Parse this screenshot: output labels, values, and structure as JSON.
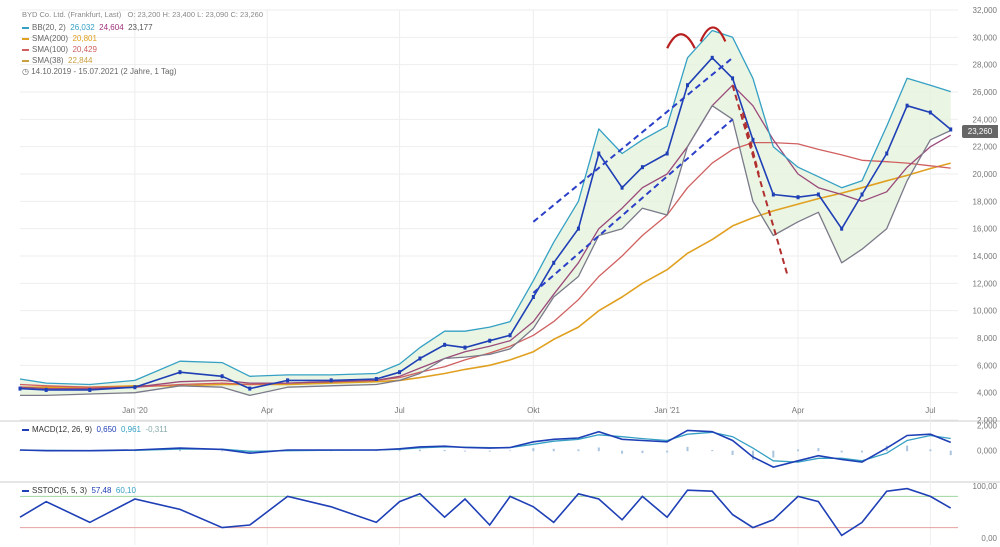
{
  "header": {
    "title": "BYD Co. Ltd. (Frankfurt, Last)",
    "ohlc": "O: 23,200  H: 23,400  L: 23,090  C: 23,260"
  },
  "legend": [
    {
      "label": "BB(20, 2)",
      "v1": "26,032",
      "v2": "24,604",
      "v3": "23,177",
      "color": "#35a0c4"
    },
    {
      "label": "SMA(200)",
      "v1": "20,801",
      "color": "#e0a020"
    },
    {
      "label": "SMA(100)",
      "v1": "20,429",
      "color": "#d06060"
    },
    {
      "label": "SMA(38)",
      "v1": "22,844",
      "color": "#c8a040"
    }
  ],
  "range": "14.10.2019 - 15.07.2021   (2 Jahre, 1 Tag)",
  "last_price": "23,260",
  "macd": {
    "label": "MACD(12, 26, 9)",
    "v1": "0,650",
    "v2": "0,961",
    "v3": "-0,311",
    "ticks": [
      "2,000",
      "0,000"
    ]
  },
  "sstoc": {
    "label": "SSTOC(5, 5, 3)",
    "v1": "57,48",
    "v2": "60,10",
    "ticks": [
      "100,00",
      "0,00"
    ]
  },
  "chart_data": {
    "type": "line",
    "title": "BYD Co. Ltd. (Frankfurt, Last)",
    "x_ticks": [
      "Jan '20",
      "Apr",
      "Jul",
      "Okt",
      "Jan '21",
      "Apr",
      "Jul"
    ],
    "y_ticks": [
      "2,000",
      "4,000",
      "6,000",
      "8,000",
      "10,000",
      "12,000",
      "14,000",
      "16,000",
      "18,000",
      "20,000",
      "22,000",
      "24,000",
      "26,000",
      "28,000",
      "30,000",
      "32,000"
    ],
    "ylim": [
      2,
      32
    ],
    "x": [
      "2019-10-14",
      "2019-11-01",
      "2019-12-01",
      "2020-01-01",
      "2020-02-01",
      "2020-03-01",
      "2020-03-20",
      "2020-04-15",
      "2020-05-15",
      "2020-06-15",
      "2020-07-01",
      "2020-07-15",
      "2020-08-01",
      "2020-08-15",
      "2020-09-01",
      "2020-09-15",
      "2020-10-01",
      "2020-10-15",
      "2020-11-01",
      "2020-11-15",
      "2020-12-01",
      "2020-12-15",
      "2021-01-01",
      "2021-01-15",
      "2021-02-01",
      "2021-02-15",
      "2021-03-01",
      "2021-03-15",
      "2021-04-01",
      "2021-04-15",
      "2021-05-01",
      "2021-05-15",
      "2021-06-01",
      "2021-06-15",
      "2021-07-01",
      "2021-07-15"
    ],
    "series": [
      {
        "name": "BYD Co. Ltd.",
        "values": [
          4.3,
          4.2,
          4.2,
          4.4,
          5.5,
          5.2,
          4.3,
          4.9,
          4.9,
          5.0,
          5.5,
          6.5,
          7.5,
          7.3,
          7.8,
          8.2,
          11.0,
          13.5,
          16.0,
          21.5,
          19.0,
          20.5,
          21.5,
          26.5,
          28.5,
          27.0,
          22.5,
          18.5,
          18.3,
          18.5,
          16.0,
          18.5,
          21.5,
          25.0,
          24.5,
          23.26
        ]
      },
      {
        "name": "BB(20, 2)",
        "values": [
          5.0,
          4.7,
          4.6,
          4.9,
          6.3,
          6.2,
          5.2,
          5.3,
          5.3,
          5.4,
          6.1,
          7.3,
          8.5,
          8.5,
          8.8,
          9.2,
          12.2,
          15.0,
          18.0,
          23.3,
          21.5,
          22.5,
          23.5,
          28.5,
          30.5,
          30.0,
          27.0,
          22.0,
          20.5,
          19.8,
          19.0,
          19.5,
          23.5,
          27.0,
          26.5,
          26.03
        ]
      },
      {
        "name": "BB(20, 2)",
        "values": [
          3.8,
          3.8,
          3.9,
          4.0,
          4.5,
          4.4,
          3.8,
          4.4,
          4.5,
          4.6,
          4.9,
          5.4,
          6.5,
          6.6,
          6.8,
          7.2,
          8.7,
          11.0,
          12.5,
          15.5,
          16.0,
          17.5,
          17.0,
          22.0,
          25.0,
          24.0,
          18.0,
          15.5,
          16.5,
          17.2,
          13.5,
          14.5,
          16.0,
          19.5,
          22.5,
          23.18
        ]
      },
      {
        "name": "SMA(200)",
        "values": [
          4.4,
          4.4,
          4.4,
          4.5,
          4.5,
          4.6,
          4.6,
          4.6,
          4.7,
          4.8,
          4.9,
          5.1,
          5.4,
          5.7,
          6.0,
          6.4,
          7.0,
          7.9,
          8.8,
          10.0,
          11.0,
          12.0,
          13.0,
          14.2,
          15.2,
          16.2,
          16.8,
          17.3,
          17.8,
          18.2,
          18.6,
          19.0,
          19.5,
          19.9,
          20.4,
          20.8
        ]
      },
      {
        "name": "SMA(100)",
        "values": [
          4.6,
          4.5,
          4.4,
          4.4,
          4.6,
          4.7,
          4.6,
          4.7,
          4.8,
          4.9,
          5.1,
          5.5,
          5.9,
          6.4,
          6.9,
          7.4,
          8.2,
          9.2,
          10.8,
          12.5,
          14.0,
          15.5,
          17.0,
          19.0,
          20.8,
          21.8,
          22.3,
          22.3,
          22.2,
          21.8,
          21.4,
          21.0,
          20.9,
          20.8,
          20.6,
          20.43
        ]
      },
      {
        "name": "SMA(38)",
        "values": [
          4.4,
          4.3,
          4.3,
          4.4,
          4.8,
          4.9,
          4.7,
          4.7,
          4.8,
          4.9,
          5.2,
          5.8,
          6.5,
          7.0,
          7.4,
          7.8,
          9.2,
          11.2,
          13.5,
          16.0,
          17.5,
          19.0,
          20.0,
          22.0,
          25.0,
          26.5,
          25.0,
          22.5,
          20.0,
          19.0,
          18.5,
          18.0,
          18.7,
          20.5,
          22.0,
          22.84
        ]
      }
    ],
    "macd_values": [
      0.05,
      0.0,
      0.0,
      0.05,
      0.2,
      0.1,
      -0.2,
      0.05,
      0.05,
      0.05,
      0.15,
      0.3,
      0.35,
      0.25,
      0.2,
      0.25,
      0.7,
      0.9,
      1.0,
      1.5,
      0.9,
      0.8,
      0.7,
      1.6,
      1.5,
      0.8,
      -0.5,
      -1.3,
      -0.8,
      -0.4,
      -0.7,
      -0.9,
      0.2,
      1.2,
      1.3,
      0.65
    ],
    "macd_signal": [
      0.05,
      0.02,
      0.0,
      0.03,
      0.12,
      0.12,
      -0.05,
      0.0,
      0.04,
      0.05,
      0.1,
      0.22,
      0.3,
      0.28,
      0.24,
      0.24,
      0.5,
      0.75,
      0.9,
      1.25,
      1.1,
      0.95,
      0.8,
      1.3,
      1.45,
      1.1,
      0.2,
      -0.8,
      -0.9,
      -0.6,
      -0.6,
      -0.8,
      -0.2,
      0.8,
      1.2,
      0.96
    ],
    "sstoc_values": [
      40,
      70,
      30,
      75,
      55,
      20,
      25,
      80,
      60,
      30,
      70,
      85,
      40,
      75,
      25,
      80,
      60,
      30,
      85,
      75,
      35,
      80,
      40,
      92,
      90,
      45,
      20,
      35,
      80,
      70,
      5,
      30,
      90,
      95,
      80,
      57.48
    ]
  }
}
